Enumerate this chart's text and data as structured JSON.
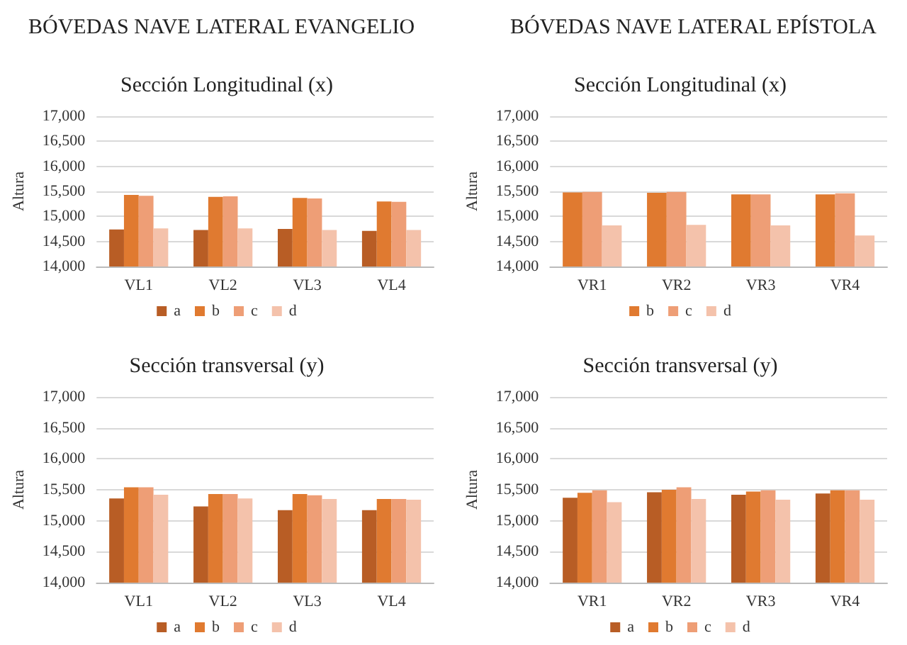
{
  "chart_data": [
    {
      "type": "bar",
      "annotations": [
        "BÓVEDAS NAVE LATERAL EVANGELIO"
      ],
      "title": "Sección Longitudinal (x)",
      "ylabel": "Altura",
      "categories": [
        "VL1",
        "VL2",
        "VL3",
        "VL4"
      ],
      "series": [
        {
          "name": "a",
          "color": "#b85d25",
          "values": [
            14740,
            14730,
            14750,
            14710
          ]
        },
        {
          "name": "b",
          "color": "#e07a30",
          "values": [
            15430,
            15390,
            15370,
            15300
          ]
        },
        {
          "name": "c",
          "color": "#ee9e76",
          "values": [
            15410,
            15400,
            15360,
            15290
          ]
        },
        {
          "name": "d",
          "color": "#f4c2ab",
          "values": [
            14760,
            14760,
            14730,
            14730
          ]
        }
      ],
      "ylim": [
        14000,
        17000
      ],
      "yticks": [
        {
          "value": 14000,
          "label": "14,000"
        },
        {
          "value": 14500,
          "label": "14,500"
        },
        {
          "value": 15000,
          "label": "15,000"
        },
        {
          "value": 15500,
          "label": "15,500"
        },
        {
          "value": 16000,
          "label": "16,000"
        },
        {
          "value": 16500,
          "label": "16,500"
        },
        {
          "value": 17000,
          "label": "17,000"
        }
      ],
      "grid": "y",
      "legend": "bottom"
    },
    {
      "type": "bar",
      "annotations": [
        "BÓVEDAS NAVE LATERAL EPÍSTOLA"
      ],
      "title": "Sección Longitudinal (x)",
      "ylabel": "Altura",
      "categories": [
        "VR1",
        "VR2",
        "VR3",
        "VR4"
      ],
      "series": [
        {
          "name": "b",
          "color": "#e07a30",
          "values": [
            15480,
            15470,
            15440,
            15440
          ]
        },
        {
          "name": "c",
          "color": "#ee9e76",
          "values": [
            15490,
            15490,
            15440,
            15460
          ]
        },
        {
          "name": "d",
          "color": "#f4c2ab",
          "values": [
            14820,
            14830,
            14820,
            14620
          ]
        }
      ],
      "ylim": [
        14000,
        17000
      ],
      "yticks": [
        {
          "value": 14000,
          "label": "14,000"
        },
        {
          "value": 14500,
          "label": "14,500"
        },
        {
          "value": 15000,
          "label": "15,000"
        },
        {
          "value": 15500,
          "label": "15,500"
        },
        {
          "value": 16000,
          "label": "16,000"
        },
        {
          "value": 16500,
          "label": "16,500"
        },
        {
          "value": 17000,
          "label": "17,000"
        }
      ],
      "grid": "y",
      "legend": "bottom"
    },
    {
      "type": "bar",
      "title": "Sección transversal (y)",
      "ylabel": "Altura",
      "categories": [
        "VL1",
        "VL2",
        "VL3",
        "VL4"
      ],
      "series": [
        {
          "name": "a",
          "color": "#b85d25",
          "values": [
            15360,
            15230,
            15170,
            15170
          ]
        },
        {
          "name": "b",
          "color": "#e07a30",
          "values": [
            15540,
            15430,
            15430,
            15350
          ]
        },
        {
          "name": "c",
          "color": "#ee9e76",
          "values": [
            15540,
            15430,
            15410,
            15350
          ]
        },
        {
          "name": "d",
          "color": "#f4c2ab",
          "values": [
            15420,
            15360,
            15350,
            15340
          ]
        }
      ],
      "ylim": [
        14000,
        17000
      ],
      "yticks": [
        {
          "value": 14000,
          "label": "14,000"
        },
        {
          "value": 14500,
          "label": "14,500"
        },
        {
          "value": 15000,
          "label": "15,000"
        },
        {
          "value": 15500,
          "label": "15,500"
        },
        {
          "value": 16000,
          "label": "16,000"
        },
        {
          "value": 16500,
          "label": "16,500"
        },
        {
          "value": 17000,
          "label": "17,000"
        }
      ],
      "grid": "y",
      "legend": "bottom"
    },
    {
      "type": "bar",
      "title": "Sección transversal (y)",
      "ylabel": "Altura",
      "categories": [
        "VR1",
        "VR2",
        "VR3",
        "VR4"
      ],
      "series": [
        {
          "name": "a",
          "color": "#b85d25",
          "values": [
            15370,
            15460,
            15420,
            15440
          ]
        },
        {
          "name": "b",
          "color": "#e07a30",
          "values": [
            15450,
            15500,
            15470,
            15490
          ]
        },
        {
          "name": "c",
          "color": "#ee9e76",
          "values": [
            15490,
            15540,
            15490,
            15490
          ]
        },
        {
          "name": "d",
          "color": "#f4c2ab",
          "values": [
            15300,
            15350,
            15340,
            15340
          ]
        }
      ],
      "ylim": [
        14000,
        17000
      ],
      "yticks": [
        {
          "value": 14000,
          "label": "14,000"
        },
        {
          "value": 14500,
          "label": "14,500"
        },
        {
          "value": 15000,
          "label": "15,000"
        },
        {
          "value": 15500,
          "label": "15,500"
        },
        {
          "value": 16000,
          "label": "16,000"
        },
        {
          "value": 16500,
          "label": "16,500"
        },
        {
          "value": 17000,
          "label": "17,000"
        }
      ],
      "grid": "y",
      "legend": "bottom"
    }
  ]
}
